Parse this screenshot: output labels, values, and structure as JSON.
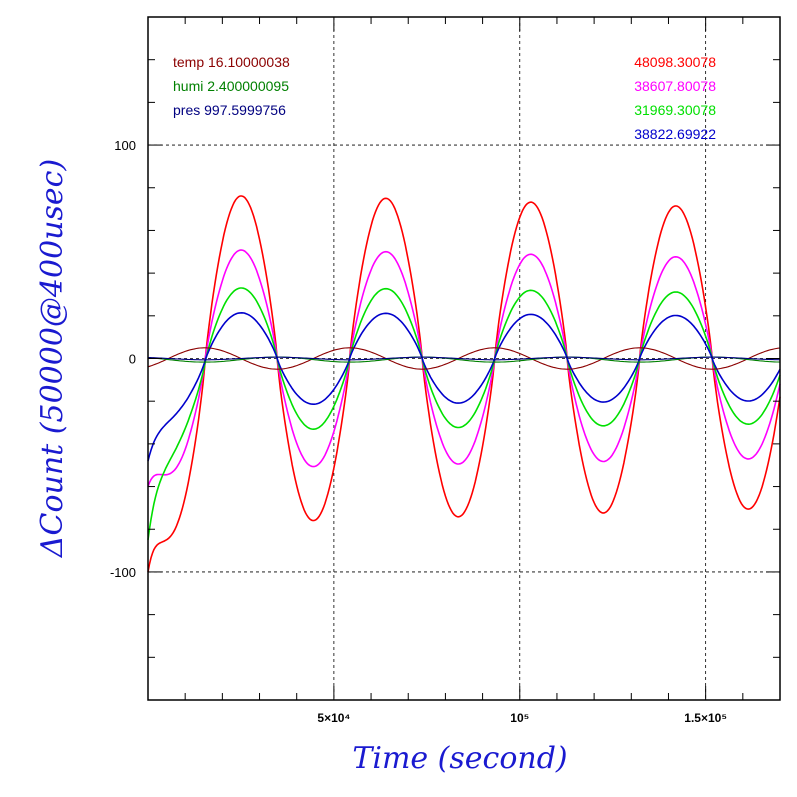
{
  "chart_data": {
    "type": "line",
    "xlabel": "Time (second)",
    "ylabel": "ΔCount (50000@400usec)",
    "xlim": [
      0,
      170000
    ],
    "ylim": [
      -160,
      160
    ],
    "x_ticks": [
      {
        "value": 50000,
        "label": "5×10⁴"
      },
      {
        "value": 100000,
        "label": "10⁵"
      },
      {
        "value": 150000,
        "label": "1.5×10⁵"
      }
    ],
    "y_ticks": [
      {
        "value": 100,
        "label": "100"
      },
      {
        "value": 0,
        "label": "0"
      },
      {
        "value": -100,
        "label": "-100"
      }
    ],
    "grid": true,
    "environment": [
      {
        "label": "temp 16.10000038",
        "color": "#8b0000"
      },
      {
        "label": "humi 2.400000095",
        "color": "#008000"
      },
      {
        "label": "pres 997.5999756",
        "color": "#000080"
      }
    ],
    "series": [
      {
        "name": "48098.30078",
        "color": "#ff0000",
        "amplitude": 78,
        "start": -100
      },
      {
        "name": "38607.80078",
        "color": "#ff00ff",
        "amplitude": 52,
        "start": -60
      },
      {
        "name": "31969.30078",
        "color": "#00e000",
        "amplitude": 34,
        "start": -85
      },
      {
        "name": "38822.69922",
        "color": "#0000cc",
        "amplitude": 22,
        "start": -48
      }
    ],
    "secondary_series": [
      {
        "name": "temp",
        "color": "#8b0000",
        "amplitude": 5
      },
      {
        "name": "humi",
        "color": "#008000",
        "amplitude": 2
      },
      {
        "name": "pres",
        "color": "#000080",
        "amplitude": 1
      }
    ],
    "period": 39000,
    "peak_times": [
      25000,
      65000,
      104500,
      143500
    ],
    "trough_times": [
      44000,
      84000,
      123500,
      162500
    ]
  }
}
